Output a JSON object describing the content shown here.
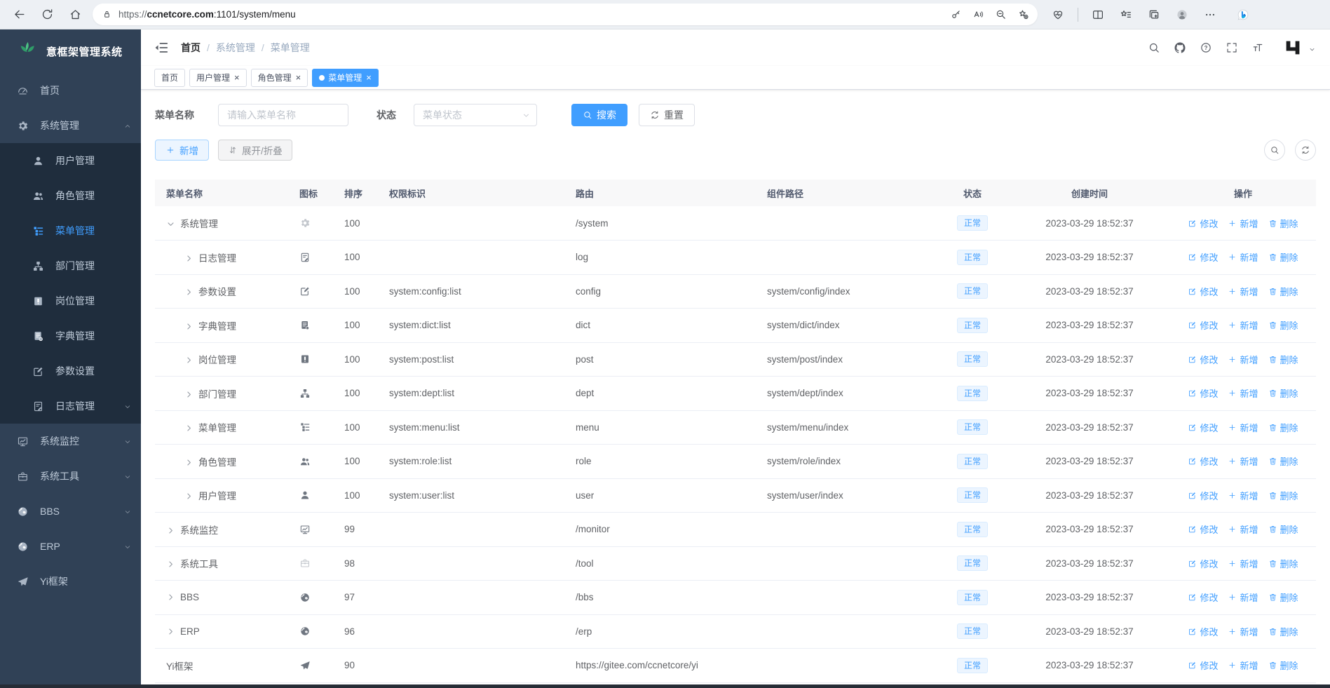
{
  "browser": {
    "url_scheme": "https://",
    "url_domain": "ccnetcore.com",
    "url_path": ":1101/system/menu",
    "left_icons": [
      "back",
      "refresh",
      "home"
    ],
    "pill_icon": "lock",
    "pill_right_icons": [
      "password-key",
      "read-aloud",
      "zoom-out",
      "favorite-add"
    ],
    "right_icons": [
      "browser-essentials",
      "split-screen",
      "favorites",
      "collections",
      "profile",
      "more"
    ],
    "assistant_icon": "bing-chat"
  },
  "sidebar": {
    "logo_title": "意框架管理系统",
    "items": [
      {
        "label": "首页",
        "icon": "dashboard"
      },
      {
        "label": "系统管理",
        "icon": "gear",
        "expanded": true,
        "children": [
          {
            "label": "用户管理",
            "icon": "user"
          },
          {
            "label": "角色管理",
            "icon": "peoples"
          },
          {
            "label": "菜单管理",
            "icon": "tree-table",
            "active": true
          },
          {
            "label": "部门管理",
            "icon": "tree"
          },
          {
            "label": "岗位管理",
            "icon": "post"
          },
          {
            "label": "字典管理",
            "icon": "dict"
          },
          {
            "label": "参数设置",
            "icon": "edit"
          },
          {
            "label": "日志管理",
            "icon": "log",
            "has_children": true
          }
        ]
      },
      {
        "label": "系统监控",
        "icon": "monitor",
        "has_children": true
      },
      {
        "label": "系统工具",
        "icon": "tool",
        "has_children": true
      },
      {
        "label": "BBS",
        "icon": "globe",
        "has_children": true
      },
      {
        "label": "ERP",
        "icon": "globe",
        "has_children": true
      },
      {
        "label": "Yi框架",
        "icon": "guide"
      }
    ]
  },
  "topbar": {
    "breadcrumb": [
      "首页",
      "系统管理",
      "菜单管理"
    ],
    "right_icons": [
      "search",
      "github",
      "question",
      "fullscreen",
      "font-size"
    ],
    "avatar_icon": "yi-logo"
  },
  "tabs": [
    {
      "label": "首页",
      "closable": false,
      "active": false
    },
    {
      "label": "用户管理",
      "closable": true,
      "active": false
    },
    {
      "label": "角色管理",
      "closable": true,
      "active": false
    },
    {
      "label": "菜单管理",
      "closable": true,
      "active": true
    }
  ],
  "filters": {
    "name_label": "菜单名称",
    "name_placeholder": "请输入菜单名称",
    "status_label": "状态",
    "status_placeholder": "菜单状态",
    "search_label": "搜索",
    "reset_label": "重置"
  },
  "toolbar": {
    "add_label": "新增",
    "toggle_label": "展开/折叠",
    "right_icons": [
      "search",
      "refresh-cw"
    ]
  },
  "table": {
    "columns": [
      "菜单名称",
      "图标",
      "排序",
      "权限标识",
      "路由",
      "组件路径",
      "状态",
      "创建时间",
      "操作"
    ],
    "actions": [
      {
        "label": "修改",
        "icon": "edit-action"
      },
      {
        "label": "新增",
        "icon": "plus"
      },
      {
        "label": "删除",
        "icon": "trash"
      }
    ],
    "rows": [
      {
        "name": "系统管理",
        "icon": "gear",
        "level": 0,
        "arrow": "expanded",
        "sort": "100",
        "perm": "",
        "route": "/system",
        "component": "",
        "status": "正常",
        "time": "2023-03-29 18:52:37"
      },
      {
        "name": "日志管理",
        "icon": "log",
        "level": 1,
        "arrow": "collapsed",
        "sort": "100",
        "perm": "",
        "route": "log",
        "component": "",
        "status": "正常",
        "time": "2023-03-29 18:52:37"
      },
      {
        "name": "参数设置",
        "icon": "edit",
        "level": 1,
        "arrow": "collapsed",
        "sort": "100",
        "perm": "system:config:list",
        "route": "config",
        "component": "system/config/index",
        "status": "正常",
        "time": "2023-03-29 18:52:37"
      },
      {
        "name": "字典管理",
        "icon": "dict",
        "level": 1,
        "arrow": "collapsed",
        "sort": "100",
        "perm": "system:dict:list",
        "route": "dict",
        "component": "system/dict/index",
        "status": "正常",
        "time": "2023-03-29 18:52:37"
      },
      {
        "name": "岗位管理",
        "icon": "post",
        "level": 1,
        "arrow": "collapsed",
        "sort": "100",
        "perm": "system:post:list",
        "route": "post",
        "component": "system/post/index",
        "status": "正常",
        "time": "2023-03-29 18:52:37"
      },
      {
        "name": "部门管理",
        "icon": "tree",
        "level": 1,
        "arrow": "collapsed",
        "sort": "100",
        "perm": "system:dept:list",
        "route": "dept",
        "component": "system/dept/index",
        "status": "正常",
        "time": "2023-03-29 18:52:37"
      },
      {
        "name": "菜单管理",
        "icon": "tree-table",
        "level": 1,
        "arrow": "collapsed",
        "sort": "100",
        "perm": "system:menu:list",
        "route": "menu",
        "component": "system/menu/index",
        "status": "正常",
        "time": "2023-03-29 18:52:37"
      },
      {
        "name": "角色管理",
        "icon": "peoples",
        "level": 1,
        "arrow": "collapsed",
        "sort": "100",
        "perm": "system:role:list",
        "route": "role",
        "component": "system/role/index",
        "status": "正常",
        "time": "2023-03-29 18:52:37"
      },
      {
        "name": "用户管理",
        "icon": "user",
        "level": 1,
        "arrow": "collapsed",
        "sort": "100",
        "perm": "system:user:list",
        "route": "user",
        "component": "system/user/index",
        "status": "正常",
        "time": "2023-03-29 18:52:37"
      },
      {
        "name": "系统监控",
        "icon": "monitor",
        "level": 0,
        "arrow": "collapsed",
        "sort": "99",
        "perm": "",
        "route": "/monitor",
        "component": "",
        "status": "正常",
        "time": "2023-03-29 18:52:37"
      },
      {
        "name": "系统工具",
        "icon": "tool",
        "level": 0,
        "arrow": "collapsed",
        "sort": "98",
        "perm": "",
        "route": "/tool",
        "component": "",
        "status": "正常",
        "time": "2023-03-29 18:52:37"
      },
      {
        "name": "BBS",
        "icon": "globe",
        "level": 0,
        "arrow": "collapsed",
        "sort": "97",
        "perm": "",
        "route": "/bbs",
        "component": "",
        "status": "正常",
        "time": "2023-03-29 18:52:37"
      },
      {
        "name": "ERP",
        "icon": "globe",
        "level": 0,
        "arrow": "collapsed",
        "sort": "96",
        "perm": "",
        "route": "/erp",
        "component": "",
        "status": "正常",
        "time": "2023-03-29 18:52:37"
      },
      {
        "name": "Yi框架",
        "icon": "guide",
        "level": 0,
        "arrow": "none",
        "sort": "90",
        "perm": "",
        "route": "https://gitee.com/ccnetcore/yi",
        "component": "",
        "status": "正常",
        "time": "2023-03-29 18:52:37"
      }
    ]
  },
  "colors": {
    "primary": "#409eff",
    "sidebar_bg": "#304156",
    "sidebar_submenu_bg": "#1f2d3d",
    "sidebar_text": "#bfcbd9",
    "tag_bg": "#ecf5ff",
    "tag_border": "#d9ecff",
    "table_header_bg": "#f8f8f9",
    "active_tab_bg": "#409eff"
  }
}
